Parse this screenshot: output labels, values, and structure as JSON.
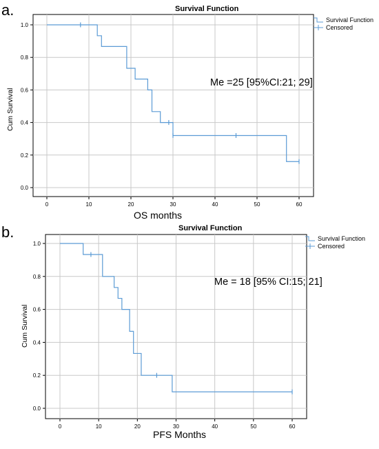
{
  "chart_data": [
    {
      "panel_label": "a.",
      "type": "line",
      "style": "step",
      "title": "Survival Function",
      "xlabel": "OS months",
      "ylabel": "Cum Survival",
      "xlim": [
        0,
        60
      ],
      "ylim": [
        0,
        1
      ],
      "xticks": [
        "0",
        "10",
        "20",
        "30",
        "40",
        "50",
        "60"
      ],
      "yticks": [
        "0.0",
        "0.2",
        "0.4",
        "0.6",
        "0.8",
        "1.0"
      ],
      "grid": true,
      "legend": {
        "position": "top-right",
        "entries": [
          "Survival Function",
          "Censored"
        ]
      },
      "annotation": "Me =25 [95%CI:21; 29]",
      "series": [
        {
          "name": "Survival Function",
          "x": [
            0,
            12,
            13,
            19,
            21,
            24,
            25,
            27,
            30,
            57,
            60
          ],
          "y": [
            1.0,
            0.933,
            0.867,
            0.733,
            0.667,
            0.6,
            0.467,
            0.4,
            0.32,
            0.16,
            0.16
          ]
        },
        {
          "name": "Censored",
          "x": [
            8,
            29,
            30,
            45,
            60
          ],
          "y": [
            1.0,
            0.4,
            0.32,
            0.32,
            0.16
          ]
        }
      ],
      "line_color": "#5b9bd5"
    },
    {
      "panel_label": "b.",
      "type": "line",
      "style": "step",
      "title": "Survival Function",
      "xlabel": "PFS Months",
      "ylabel": "Cum Survival",
      "xlim": [
        0,
        60
      ],
      "ylim": [
        0,
        1
      ],
      "xticks": [
        "0",
        "10",
        "20",
        "30",
        "40",
        "50",
        "60"
      ],
      "yticks": [
        "0.0",
        "0.2",
        "0.4",
        "0.6",
        "0.8",
        "1.0"
      ],
      "grid": true,
      "legend": {
        "position": "top-right",
        "entries": [
          "Survival Function",
          "Censored"
        ]
      },
      "annotation": "Me = 18 [95% CI:15; 21]",
      "series": [
        {
          "name": "Survival Function",
          "x": [
            0,
            6,
            11,
            14,
            15,
            16,
            18,
            19,
            21,
            29,
            60
          ],
          "y": [
            1.0,
            0.933,
            0.8,
            0.733,
            0.667,
            0.6,
            0.467,
            0.333,
            0.2,
            0.1,
            0.1
          ]
        },
        {
          "name": "Censored",
          "x": [
            8,
            25,
            60
          ],
          "y": [
            0.933,
            0.2,
            0.1
          ]
        }
      ],
      "line_color": "#5b9bd5"
    }
  ]
}
